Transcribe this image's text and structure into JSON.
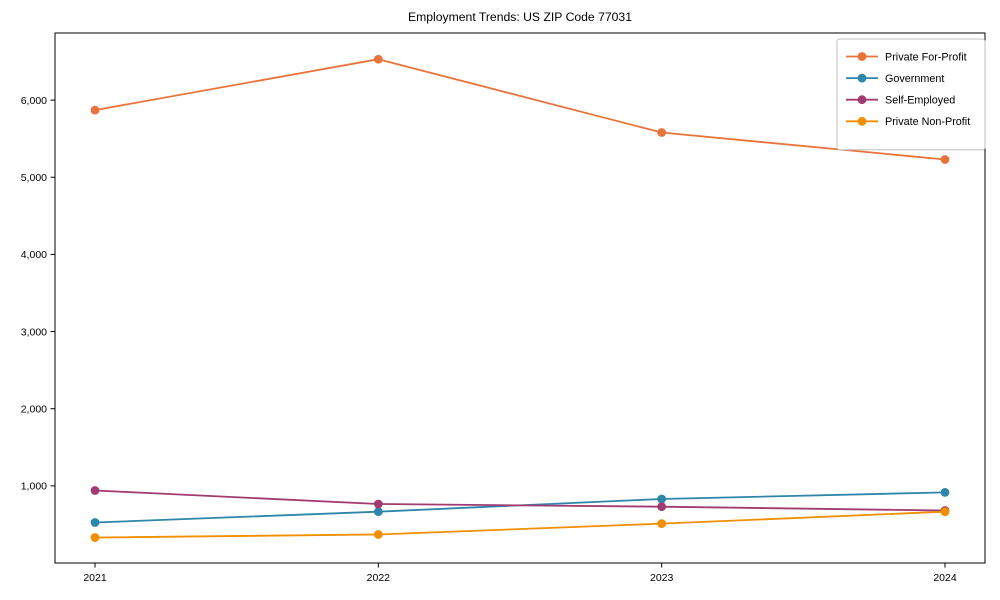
{
  "title": "Employment Trends: US ZIP Code 77031",
  "chart_data": {
    "type": "line",
    "title": "Employment Trends: US ZIP Code 77031",
    "x": [
      "2021",
      "2022",
      "2023",
      "2024"
    ],
    "series": [
      {
        "name": "Private For-Profit",
        "color": "#E8743B",
        "values": [
          5870,
          6530,
          5580,
          5230
        ]
      },
      {
        "name": "Government",
        "color": "#2E86AB",
        "values": [
          525,
          665,
          830,
          915
        ]
      },
      {
        "name": "Self-Employed",
        "color": "#A23B72",
        "values": [
          940,
          765,
          730,
          680
        ]
      },
      {
        "name": "Private Non-Profit",
        "color": "#F18F01",
        "values": [
          330,
          370,
          510,
          665
        ]
      }
    ],
    "xlabel": "",
    "ylabel": "",
    "ylim": [
      0,
      6870
    ],
    "yticks": [
      1000,
      2000,
      3000,
      4000,
      5000,
      6000
    ],
    "grid": false,
    "legend_position": "upper right",
    "marker": "o",
    "frame": true,
    "axis_color": "#000000",
    "legend_border_color": "#bfbfbf",
    "background_color": "#ffffff"
  }
}
